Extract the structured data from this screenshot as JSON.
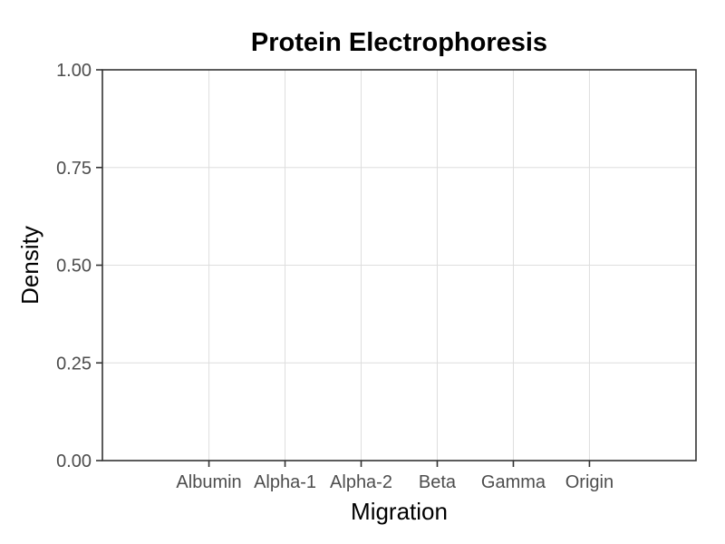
{
  "chart_data": {
    "type": "line",
    "title": "Protein Electrophoresis",
    "xlabel": "Migration",
    "ylabel": "Density",
    "categories": [
      "Albumin",
      "Alpha-1",
      "Alpha-2",
      "Beta",
      "Gamma",
      "Origin"
    ],
    "x_ticks": [
      1,
      2,
      3,
      4,
      5,
      6
    ],
    "xlim": [
      -0.4,
      7.4
    ],
    "ylim": [
      0,
      1
    ],
    "y_ticks": [
      0,
      0.25,
      0.5,
      0.75,
      1
    ],
    "y_tick_labels": [
      "0.00",
      "0.25",
      "0.50",
      "0.75",
      "1.00"
    ],
    "series": [],
    "grid": true,
    "legend": "none"
  }
}
